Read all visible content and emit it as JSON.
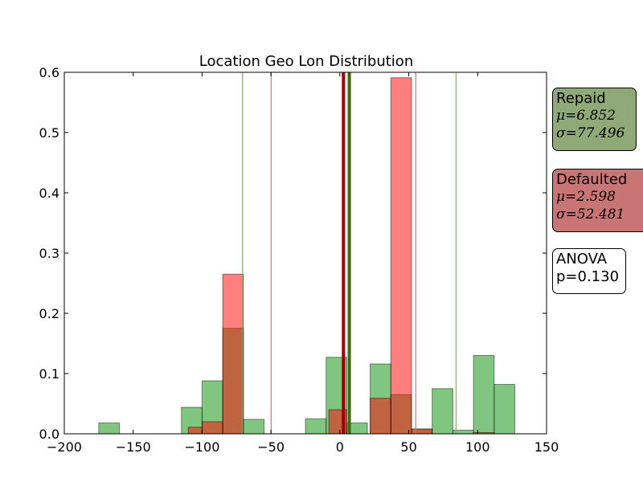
{
  "chart_data": {
    "type": "bar",
    "title": "Location Geo Lon Distribution",
    "xlabel": "",
    "ylabel": "",
    "xlim": [
      -200,
      150
    ],
    "ylim": [
      0,
      0.6
    ],
    "xticks": [
      -200,
      -150,
      -100,
      -50,
      0,
      50,
      100,
      150
    ],
    "xtick_labels": [
      "−200",
      "−150",
      "−100",
      "−50",
      "0",
      "50",
      "100",
      "150"
    ],
    "yticks": [
      0.0,
      0.1,
      0.2,
      0.3,
      0.4,
      0.5,
      0.6
    ],
    "ytick_labels": [
      "0.0",
      "0.1",
      "0.2",
      "0.3",
      "0.4",
      "0.5",
      "0.6"
    ],
    "grid": false,
    "series": [
      {
        "name": "Repaid",
        "color": "#2ca02c",
        "opacity": 0.6,
        "bins": [
          {
            "x0": -175,
            "x1": -160,
            "value": 0.018
          },
          {
            "x0": -115,
            "x1": -100,
            "value": 0.044
          },
          {
            "x0": -100,
            "x1": -85,
            "value": 0.088
          },
          {
            "x0": -85,
            "x1": -70,
            "value": 0.175
          },
          {
            "x0": -70,
            "x1": -55,
            "value": 0.024
          },
          {
            "x0": -25,
            "x1": -10,
            "value": 0.025
          },
          {
            "x0": -10,
            "x1": 5,
            "value": 0.127
          },
          {
            "x0": 5,
            "x1": 20,
            "value": 0.018
          },
          {
            "x0": 22,
            "x1": 37,
            "value": 0.116
          },
          {
            "x0": 37,
            "x1": 52,
            "value": 0.065
          },
          {
            "x0": 52,
            "x1": 67,
            "value": 0.008
          },
          {
            "x0": 67,
            "x1": 82,
            "value": 0.075
          },
          {
            "x0": 82,
            "x1": 97,
            "value": 0.006
          },
          {
            "x0": 97,
            "x1": 112,
            "value": 0.13
          },
          {
            "x0": 112,
            "x1": 127,
            "value": 0.082
          }
        ],
        "mean": 6.852,
        "std": 77.496,
        "mean_line_color": "#3d6b0f",
        "std_line_color": "#8aaa70"
      },
      {
        "name": "Defaulted",
        "color": "#ff0000",
        "opacity": 0.5,
        "bins": [
          {
            "x0": -110,
            "x1": -100,
            "value": 0.011
          },
          {
            "x0": -100,
            "x1": -85,
            "value": 0.02
          },
          {
            "x0": -85,
            "x1": -70,
            "value": 0.265
          },
          {
            "x0": -8,
            "x1": 5,
            "value": 0.04
          },
          {
            "x0": 22,
            "x1": 37,
            "value": 0.059
          },
          {
            "x0": 37,
            "x1": 52,
            "value": 0.591
          },
          {
            "x0": 52,
            "x1": 67,
            "value": 0.008
          },
          {
            "x0": 97,
            "x1": 112,
            "value": 0.002
          }
        ],
        "mean": 2.598,
        "std": 52.481,
        "mean_line_color": "#9b0000",
        "std_line_color": "#d6707a"
      }
    ],
    "legend_boxes": [
      {
        "label": "Repaid",
        "mu_text": "μ=6.852",
        "sigma_text": "σ=77.496",
        "color": "#8faa78"
      },
      {
        "label": "Defaulted",
        "mu_text": "μ=2.598",
        "sigma_text": "σ=52.481",
        "color": "#c97575"
      }
    ],
    "annotation": {
      "line1": "ANOVA",
      "line2": "p=0.130"
    }
  }
}
